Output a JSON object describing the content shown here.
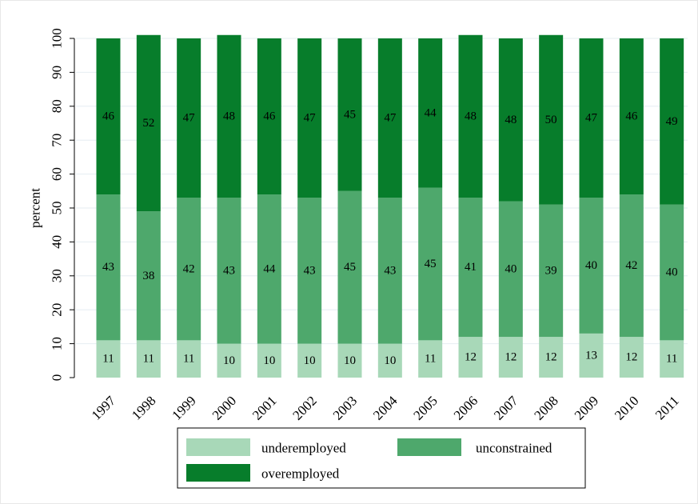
{
  "chart_data": {
    "type": "bar",
    "stacked": true,
    "title": "",
    "xlabel": "",
    "ylabel": "percent",
    "ylim": [
      0,
      100
    ],
    "yticks": [
      0,
      10,
      20,
      30,
      40,
      50,
      60,
      70,
      80,
      90,
      100
    ],
    "grid": true,
    "legend_position": "bottom",
    "categories": [
      "1997",
      "1998",
      "1999",
      "2000",
      "2001",
      "2002",
      "2003",
      "2004",
      "2005",
      "2006",
      "2007",
      "2008",
      "2009",
      "2010",
      "2011"
    ],
    "series": [
      {
        "name": "underemployed",
        "color": "#a8d8b8",
        "values": [
          11,
          11,
          11,
          10,
          10,
          10,
          10,
          10,
          11,
          12,
          12,
          12,
          13,
          12,
          11
        ]
      },
      {
        "name": "unconstrained",
        "color": "#4ea86c",
        "values": [
          43,
          38,
          42,
          43,
          44,
          43,
          45,
          43,
          45,
          41,
          40,
          39,
          40,
          42,
          40
        ]
      },
      {
        "name": "overemployed",
        "color": "#077d2b",
        "values": [
          46,
          52,
          47,
          48,
          46,
          47,
          45,
          47,
          44,
          48,
          48,
          50,
          47,
          46,
          49
        ]
      }
    ]
  }
}
